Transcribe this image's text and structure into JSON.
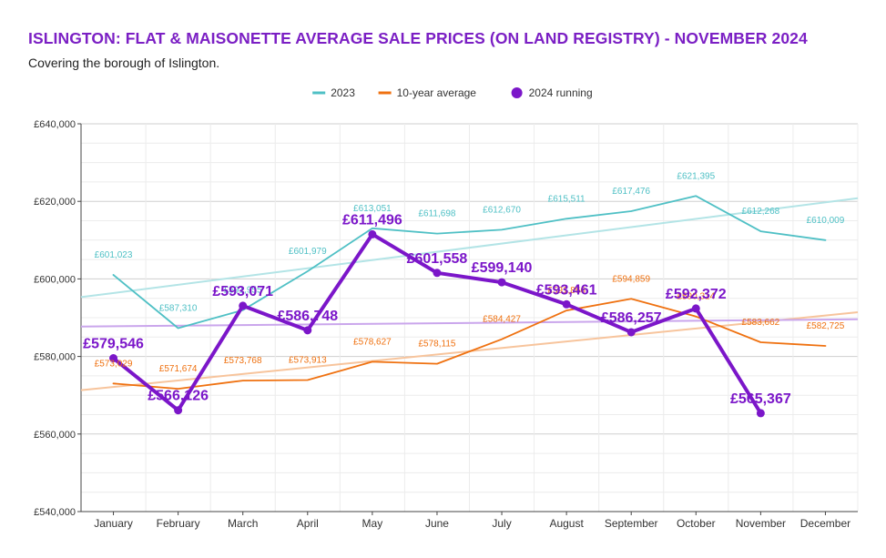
{
  "title": "ISLINGTON: FLAT & MAISONETTE AVERAGE SALE PRICES (ON LAND REGISTRY) - NOVEMBER 2024",
  "subtitle": "Covering the borough of Islington.",
  "colors": {
    "title": "#7b1fc4",
    "s2023": "#4fc0c5",
    "avg": "#ef7110",
    "run2024": "#7b16c9",
    "trend2023": "#b3e4e6",
    "trendAvg": "#f7c49c",
    "trend2024": "#caa6ec",
    "grid": "#e2e2e2"
  },
  "chart_data": {
    "type": "line",
    "title": "ISLINGTON: FLAT & MAISONETTE AVERAGE SALE PRICES (ON LAND REGISTRY) - NOVEMBER 2024",
    "xlabel": "",
    "ylabel": "",
    "ylim": [
      540000,
      640000
    ],
    "yticks": [
      540000,
      560000,
      580000,
      600000,
      620000,
      640000
    ],
    "ytick_labels": [
      "£540,000",
      "£560,000",
      "£580,000",
      "£600,000",
      "£620,000",
      "£640,000"
    ],
    "categories": [
      "January",
      "February",
      "March",
      "April",
      "May",
      "June",
      "July",
      "August",
      "September",
      "October",
      "November",
      "December"
    ],
    "legend_position": "top-center",
    "series": [
      {
        "name": "2023",
        "key": "s2023",
        "values": [
          601023,
          587310,
          591955,
          601979,
          613051,
          611698,
          612670,
          615511,
          617476,
          621395,
          612268,
          610009
        ],
        "labels": [
          "£601,023",
          "£587,310",
          "£591,955",
          "£601,979",
          "£613,051",
          "£611,698",
          "£612,670",
          "£615,511",
          "£617,476",
          "£621,395",
          "£612,268",
          "£610,009"
        ],
        "trend": [
          595300,
          620800
        ]
      },
      {
        "name": "10-year average",
        "key": "avg",
        "values": [
          573029,
          571674,
          573768,
          573913,
          578627,
          578115,
          584427,
          591866,
          594859,
          590314,
          583662,
          582725
        ],
        "labels": [
          "£573,029",
          "£571,674",
          "£573,768",
          "£573,913",
          "£578,627",
          "£578,115",
          "£584,427",
          "£591,866",
          "£594,859",
          "£590,314",
          "£583,662",
          "£582,725"
        ],
        "trend": [
          571300,
          591400
        ]
      },
      {
        "name": "2024 running",
        "key": "run2024",
        "values": [
          579546,
          566126,
          593071,
          586748,
          611496,
          601558,
          599140,
          593461,
          586257,
          592372,
          565367,
          null
        ],
        "labels": [
          "£579,546",
          "£566,126",
          "£593,071",
          "£586,748",
          "£611,496",
          "£601,558",
          "£599,140",
          "£593,461",
          "£586,257",
          "£592,372",
          "£565,367",
          ""
        ],
        "trend": [
          587700,
          589600
        ]
      }
    ]
  }
}
